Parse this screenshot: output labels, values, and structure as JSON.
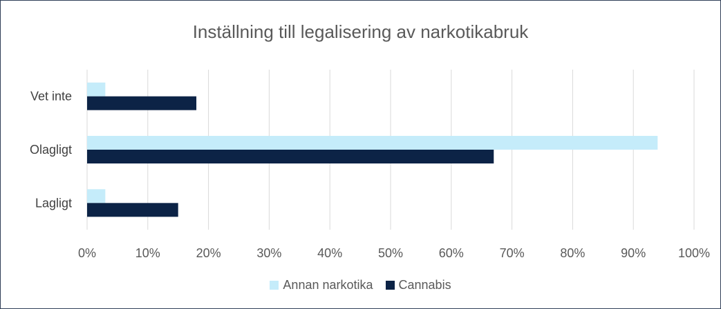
{
  "chart_data": {
    "type": "bar",
    "orientation": "horizontal",
    "title": "Inställning till legalisering av narkotikabruk",
    "categories": [
      "Vet inte",
      "Olagligt",
      "Lagligt"
    ],
    "series": [
      {
        "name": "Annan narkotika",
        "color": "#c5ecfa",
        "values": [
          3,
          94,
          3
        ]
      },
      {
        "name": "Cannabis",
        "color": "#0c2346",
        "values": [
          18,
          67,
          15
        ]
      }
    ],
    "xlim": [
      0,
      100
    ],
    "xticks": [
      "0%",
      "10%",
      "20%",
      "30%",
      "40%",
      "50%",
      "60%",
      "70%",
      "80%",
      "90%",
      "100%"
    ],
    "grid": true,
    "legend_position": "bottom"
  }
}
